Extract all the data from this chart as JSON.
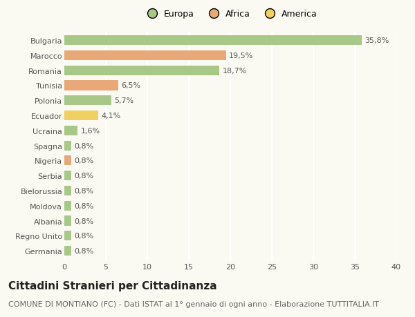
{
  "categories": [
    "Germania",
    "Regno Unito",
    "Albania",
    "Moldova",
    "Bielorussia",
    "Serbia",
    "Nigeria",
    "Spagna",
    "Ucraina",
    "Ecuador",
    "Polonia",
    "Tunisia",
    "Romania",
    "Marocco",
    "Bulgaria"
  ],
  "values": [
    0.8,
    0.8,
    0.8,
    0.8,
    0.8,
    0.8,
    0.8,
    0.8,
    1.6,
    4.1,
    5.7,
    6.5,
    18.7,
    19.5,
    35.8
  ],
  "colors": [
    "#a8c888",
    "#a8c888",
    "#a8c888",
    "#a8c888",
    "#a8c888",
    "#a8c888",
    "#e8a878",
    "#a8c888",
    "#a8c888",
    "#f0d060",
    "#a8c888",
    "#e8a878",
    "#a8c888",
    "#e8a878",
    "#a8c888"
  ],
  "labels": [
    "0,8%",
    "0,8%",
    "0,8%",
    "0,8%",
    "0,8%",
    "0,8%",
    "0,8%",
    "0,8%",
    "1,6%",
    "4,1%",
    "5,7%",
    "6,5%",
    "18,7%",
    "19,5%",
    "35,8%"
  ],
  "legend_labels": [
    "Europa",
    "Africa",
    "America"
  ],
  "legend_colors": [
    "#a8c888",
    "#e8a878",
    "#f0d060"
  ],
  "title": "Cittadini Stranieri per Cittadinanza",
  "subtitle": "COMUNE DI MONTIANO (FC) - Dati ISTAT al 1° gennaio di ogni anno - Elaborazione TUTTITALIA.IT",
  "xlim": [
    0,
    40
  ],
  "xticks": [
    0,
    5,
    10,
    15,
    20,
    25,
    30,
    35,
    40
  ],
  "background_color": "#fafaf2",
  "grid_color": "#ffffff",
  "bar_height": 0.65,
  "title_fontsize": 11,
  "subtitle_fontsize": 8,
  "label_fontsize": 8,
  "tick_fontsize": 8,
  "legend_fontsize": 9
}
